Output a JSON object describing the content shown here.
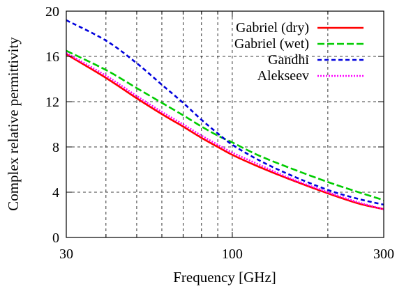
{
  "chart_data": {
    "type": "line",
    "title": "",
    "xlabel": "Frequency [GHz]",
    "ylabel": "Complex relative permittivity",
    "x_scale": "log",
    "xlim": [
      30,
      300
    ],
    "ylim": [
      0,
      20
    ],
    "x_ticks": [
      30,
      100,
      300
    ],
    "x_tick_labels": [
      "30",
      "100",
      "300"
    ],
    "x_minor_gridlines": [
      40,
      50,
      60,
      70,
      80,
      90,
      200
    ],
    "y_ticks": [
      0,
      4,
      8,
      12,
      16,
      20
    ],
    "y_tick_labels": [
      "0",
      "4",
      "8",
      "12",
      "16",
      "20"
    ],
    "grid": true,
    "grid_style": "dashed",
    "legend_position": "top-right",
    "x": [
      30,
      40,
      50,
      60,
      70,
      80,
      90,
      100,
      120,
      150,
      200,
      250,
      300
    ],
    "series": [
      {
        "name": "Gabriel (dry)",
        "color": "#ff0000",
        "dash": "solid",
        "values": [
          16.2,
          14.1,
          12.3,
          10.9,
          9.8,
          8.8,
          8.0,
          7.3,
          6.3,
          5.2,
          3.9,
          3.0,
          2.5
        ]
      },
      {
        "name": "Gabriel (wet)",
        "color": "#00cc00",
        "dash": "dashed",
        "values": [
          16.5,
          14.8,
          13.2,
          11.9,
          10.8,
          9.8,
          9.0,
          8.4,
          7.3,
          6.2,
          4.9,
          4.0,
          3.3
        ]
      },
      {
        "name": "Gandhi",
        "color": "#0000dd",
        "dash": "short-dash",
        "values": [
          19.2,
          17.4,
          15.4,
          13.5,
          11.9,
          10.4,
          9.2,
          8.2,
          6.9,
          5.6,
          4.2,
          3.4,
          2.9
        ]
      },
      {
        "name": "Alekseev",
        "color": "#ff00ff",
        "dash": "dotted",
        "values": [
          16.3,
          14.3,
          12.5,
          11.1,
          10.0,
          9.0,
          8.2,
          7.5,
          6.5,
          5.3,
          4.0,
          3.1,
          2.5
        ]
      }
    ]
  }
}
